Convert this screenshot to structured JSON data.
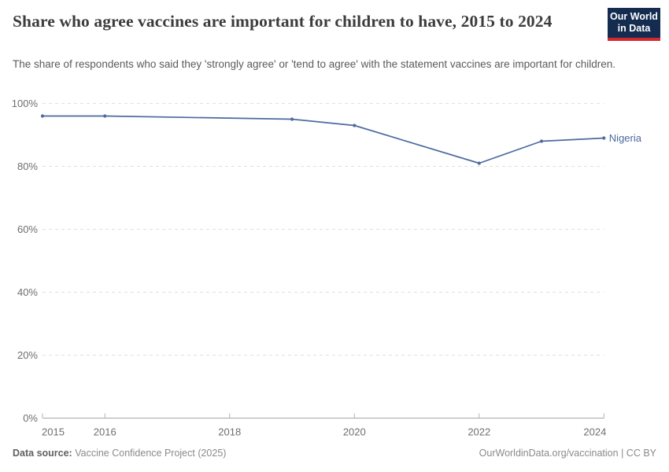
{
  "header": {
    "title": "Share who agree vaccines are important for children to have, 2015 to 2024",
    "subtitle": "The share of respondents who said they 'strongly agree' or 'tend to agree' with the statement vaccines are important for children.",
    "logo": {
      "line1": "Our World",
      "line2": "in Data"
    }
  },
  "chart_data": {
    "type": "line",
    "title": "Share who agree vaccines are important for children to have, 2015 to 2024",
    "xlabel": "",
    "ylabel": "",
    "xlim": [
      2015,
      2024
    ],
    "ylim": [
      0,
      100
    ],
    "x_ticks": [
      2015,
      2016,
      2018,
      2020,
      2022,
      2024
    ],
    "y_ticks": [
      0,
      20,
      40,
      60,
      80,
      100
    ],
    "y_tick_suffix": "%",
    "grid": "horizontal-dashed",
    "legend_position": "end-of-line",
    "series": [
      {
        "name": "Nigeria",
        "color": "#4c6aa0",
        "x": [
          2015,
          2016,
          2019,
          2020,
          2022,
          2023,
          2024
        ],
        "values": [
          96,
          96,
          95,
          93,
          81,
          88,
          89
        ]
      }
    ]
  },
  "footer": {
    "data_source_label": "Data source:",
    "data_source_value": "Vaccine Confidence Project (2025)",
    "attribution_link": "OurWorldinData.org/vaccination",
    "attribution_suffix": " | CC BY"
  },
  "colors": {
    "accent_line": "#4c6aa0",
    "title_text": "#3c3c3c",
    "subtitle_text": "#5a5a5a",
    "logo_bg": "#132c4f",
    "logo_red": "#d4292f",
    "grid": "#e0e0e0",
    "axis": "#a6a6a6",
    "axis_tick": "#b3b3b3",
    "tick_label": "#6e6e6e"
  }
}
